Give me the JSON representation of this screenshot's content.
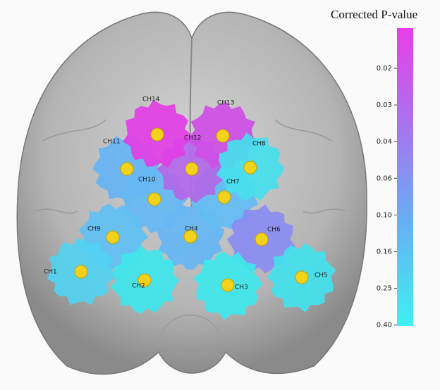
{
  "colorbar": {
    "title": "Corrected P-value",
    "top_color": "#e83ee8",
    "bottom_color": "#3ef0f0",
    "ticks": [
      "0.02",
      "0.03",
      "0.04",
      "0.06",
      "0.10",
      "0.16",
      "0.25",
      "0.40"
    ]
  },
  "channels": [
    {
      "label": "CH1",
      "color": "#52d2f2"
    },
    {
      "label": "CH2",
      "color": "#3ee6ec"
    },
    {
      "label": "CH3",
      "color": "#3ee8ec"
    },
    {
      "label": "CH4",
      "color": "#66b6f4"
    },
    {
      "label": "CH5",
      "color": "#42e2ee"
    },
    {
      "label": "CH6",
      "color": "#8a8cf2"
    },
    {
      "label": "CH7",
      "color": "#62bcf4"
    },
    {
      "label": "CH8",
      "color": "#46e0ee"
    },
    {
      "label": "CH9",
      "color": "#60c0f4"
    },
    {
      "label": "CH10",
      "color": "#64b8f4"
    },
    {
      "label": "CH11",
      "color": "#66b4f4"
    },
    {
      "label": "CH12",
      "color": "#b268e8"
    },
    {
      "label": "CH13",
      "color": "#ce4ee6"
    },
    {
      "label": "CH14",
      "color": "#e23ee6"
    }
  ]
}
